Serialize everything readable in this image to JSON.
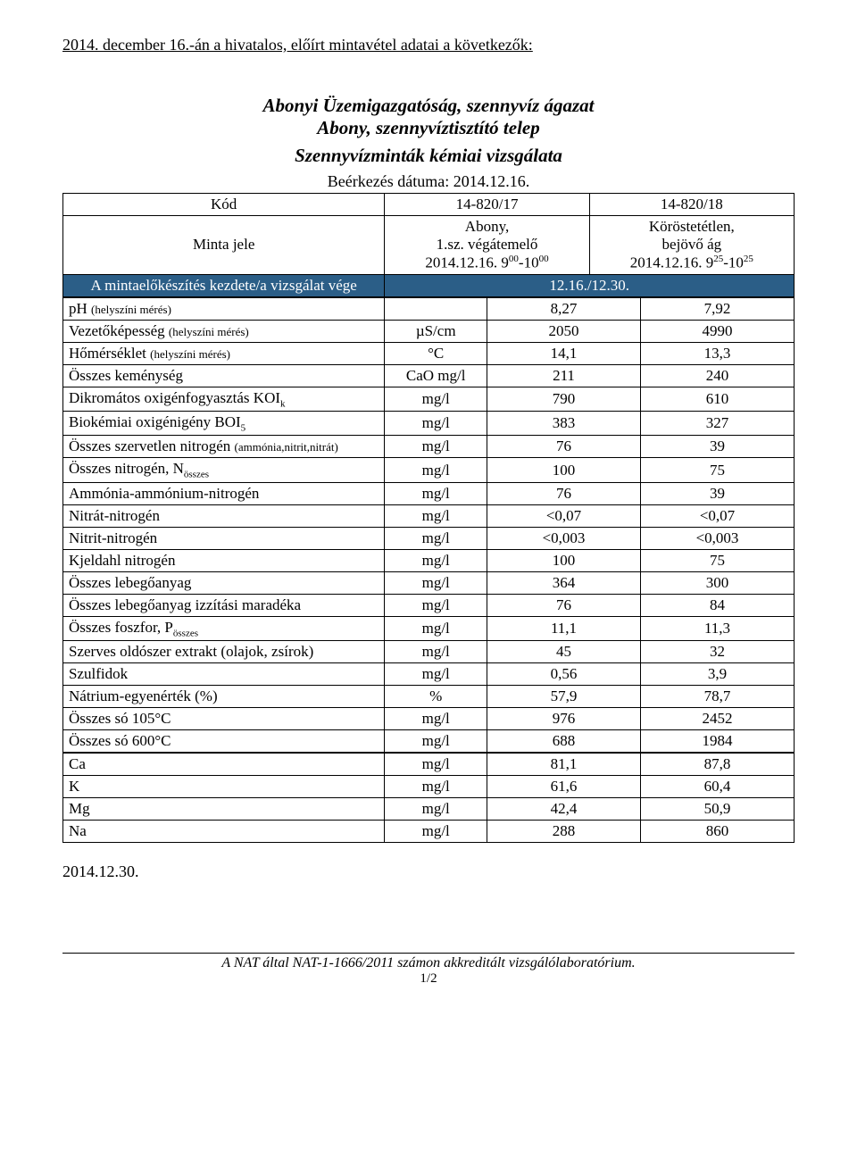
{
  "intro": "2014. december 16.-án a hivatalos, előírt mintavétel adatai a következők:",
  "header": {
    "line1": "Abonyi Üzemigazgatóság, szennyvíz ágazat",
    "line2": "Abony, szennyvíztisztító telep",
    "line3": "Szennyvízminták kémiai vizsgálata",
    "arrival": "Beérkezés dátuma: 2014.12.16."
  },
  "meta": {
    "row_kod": {
      "label": "Kód",
      "c1": "14-820/17",
      "c2": "14-820/18"
    },
    "row_minta": {
      "label": "Minta jele",
      "c1_line1": "Abony,",
      "c1_line2": "1.sz. végátemelő",
      "c1_line3_pre": "2014.12.16.  9",
      "c1_line3_sup1": "00",
      "c1_line3_mid": "-10",
      "c1_line3_sup2": "00",
      "c2_line1": "Köröstetétlen,",
      "c2_line2": "bejövő ág",
      "c2_line3_pre": "2014.12.16.  9",
      "c2_line3_sup1": "25",
      "c2_line3_mid": "-10",
      "c2_line3_sup2": "25"
    },
    "row_prep": {
      "label": "A mintaelőkészítés kezdete/a vizsgálat vége",
      "val": "12.16./12.30."
    }
  },
  "rows": [
    {
      "param": "pH",
      "note": "(helyszíni mérés)",
      "unit": "",
      "c1": "8,27",
      "c2": "7,92"
    },
    {
      "param": "Vezetőképesség",
      "note": "(helyszíni mérés)",
      "unit": "µS/cm",
      "c1": "2050",
      "c2": "4990"
    },
    {
      "param": "Hőmérséklet",
      "note": "(helyszíni mérés)",
      "unit": "°C",
      "c1": "14,1",
      "c2": "13,3"
    },
    {
      "param": "Összes keménység",
      "unit": "CaO mg/l",
      "c1": "211",
      "c2": "240"
    },
    {
      "param": "Dikromátos oxigénfogyasztás KOI",
      "sub": "k",
      "unit": "mg/l",
      "c1": "790",
      "c2": "610"
    },
    {
      "param": "Biokémiai oxigénigény BOI",
      "sub": "5",
      "unit": "mg/l",
      "c1": "383",
      "c2": "327"
    },
    {
      "param": "Összes szervetlen nitrogén ",
      "note": "(ammónia,nitrit,nitrát)",
      "unit": "mg/l",
      "c1": "76",
      "c2": "39"
    },
    {
      "param": "Összes nitrogén, N",
      "sub": "összes",
      "unit": "mg/l",
      "c1": "100",
      "c2": "75"
    },
    {
      "param": "Ammónia-ammónium-nitrogén",
      "unit": "mg/l",
      "c1": "76",
      "c2": "39"
    },
    {
      "param": "Nitrát-nitrogén",
      "unit": "mg/l",
      "c1": "<0,07",
      "c2": "<0,07"
    },
    {
      "param": "Nitrit-nitrogén",
      "unit": "mg/l",
      "c1": "<0,003",
      "c2": "<0,003"
    },
    {
      "param": "Kjeldahl nitrogén",
      "unit": "mg/l",
      "c1": "100",
      "c2": "75"
    },
    {
      "param": "Összes lebegőanyag",
      "unit": "mg/l",
      "c1": "364",
      "c2": "300"
    },
    {
      "param": "Összes lebegőanyag izzítási maradéka",
      "unit": "mg/l",
      "c1": "76",
      "c2": "84"
    },
    {
      "param": "Összes foszfor, P",
      "sub": "összes",
      "unit": "mg/l",
      "c1": "11,1",
      "c2": "11,3"
    },
    {
      "param": "Szerves oldószer extrakt (olajok, zsírok)",
      "unit": "mg/l",
      "c1": "45",
      "c2": "32"
    },
    {
      "param": "Szulfidok",
      "unit": "mg/l",
      "c1": "0,56",
      "c2": "3,9"
    },
    {
      "param": "Nátrium-egyenérték (%)",
      "unit": "%",
      "c1": "57,9",
      "c2": "78,7"
    },
    {
      "param": "Összes só 105°C",
      "unit": "mg/l",
      "c1": "976",
      "c2": "2452"
    },
    {
      "param": "Összes só 600°C",
      "unit": "mg/l",
      "c1": "688",
      "c2": "1984"
    }
  ],
  "mini": [
    {
      "param": "Ca",
      "unit": "mg/l",
      "c1": "81,1",
      "c2": "87,8"
    },
    {
      "param": "K",
      "unit": "mg/l",
      "c1": "61,6",
      "c2": "60,4"
    },
    {
      "param": "Mg",
      "unit": "mg/l",
      "c1": "42,4",
      "c2": "50,9"
    },
    {
      "param": "Na",
      "unit": "mg/l",
      "c1": "288",
      "c2": "860"
    }
  ],
  "date_bottom": "2014.12.30.",
  "footer": {
    "text": "A NAT által NAT-1-1666/2011 számon akkreditált vizsgálólaboratórium.",
    "page": "1/2"
  },
  "colors": {
    "header_row_bg": "#2b5e87",
    "header_row_fg": "#ffffff"
  }
}
